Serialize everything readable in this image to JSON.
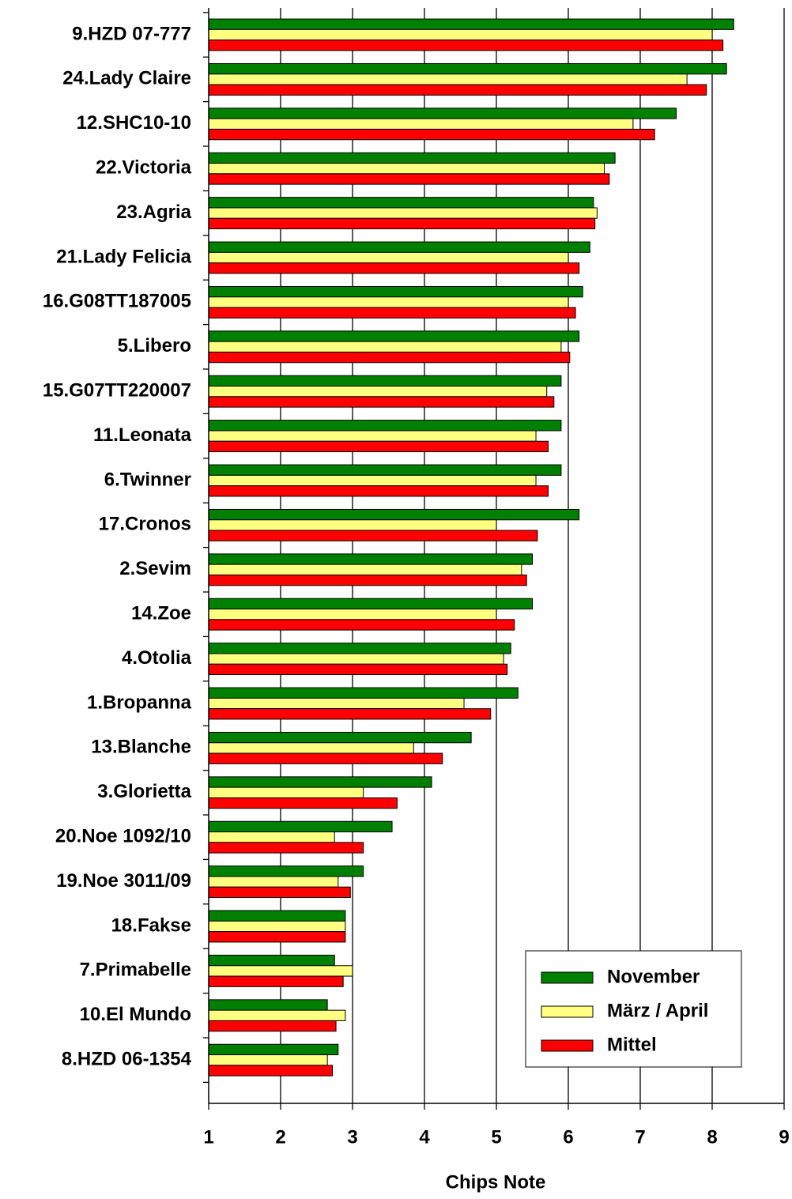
{
  "chart_data": {
    "type": "barh",
    "xlabel": "Chips Note",
    "categories": [
      "9.HZD 07-777",
      "24.Lady Claire",
      "12.SHC10-10",
      "22.Victoria",
      "23.Agria",
      "21.Lady Felicia",
      "16.G08TT187005",
      "5.Libero",
      "15.G07TT220007",
      "11.Leonata",
      "6.Twinner",
      "17.Cronos",
      "2.Sevim",
      "14.Zoe",
      "4.Otolia",
      "1.Bropanna",
      "13.Blanche",
      "3.Glorietta",
      "20.Noe 1092/10",
      "19.Noe 3011/09",
      "18.Fakse",
      "7.Primabelle",
      "10.El Mundo",
      "8.HZD 06-1354"
    ],
    "series": [
      {
        "name": "November",
        "color": "#008000",
        "values": [
          8.3,
          8.2,
          7.5,
          6.65,
          6.35,
          6.3,
          6.2,
          6.15,
          5.9,
          5.9,
          5.9,
          6.15,
          5.5,
          5.5,
          5.2,
          5.3,
          4.65,
          4.1,
          3.55,
          3.15,
          2.9,
          2.75,
          2.65,
          2.8
        ]
      },
      {
        "name": "März / April",
        "color": "#ffff80",
        "values": [
          8.0,
          7.65,
          6.9,
          6.5,
          6.4,
          6.0,
          6.0,
          5.9,
          5.7,
          5.55,
          5.55,
          5.0,
          5.35,
          5.0,
          5.1,
          4.55,
          3.85,
          3.15,
          2.75,
          2.8,
          2.9,
          3.0,
          2.9,
          2.65
        ]
      },
      {
        "name": "Mittel",
        "color": "#ff0000",
        "values": [
          8.15,
          7.92,
          7.2,
          6.57,
          6.37,
          6.15,
          6.1,
          6.02,
          5.8,
          5.72,
          5.72,
          5.57,
          5.42,
          5.25,
          5.15,
          4.92,
          4.25,
          3.62,
          3.15,
          2.97,
          2.9,
          2.87,
          2.77,
          2.72
        ]
      }
    ],
    "xlim": [
      1,
      9
    ],
    "xticks": [
      1,
      2,
      3,
      4,
      5,
      6,
      7,
      8,
      9
    ],
    "grid": true,
    "legend": "lower right"
  }
}
